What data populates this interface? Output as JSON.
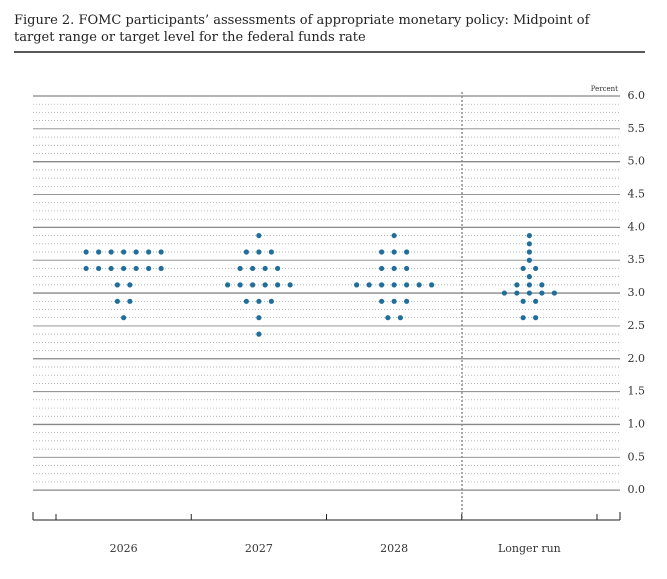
{
  "chart_data": {
    "type": "dot",
    "title": "Figure 2. FOMC participants’ assessments of appropriate monetary policy: Midpoint of target range or target level for the federal funds rate",
    "y_axis_label": "Percent",
    "categories": [
      "2026",
      "2027",
      "2028",
      "Longer run"
    ],
    "values": [
      [
        3.625,
        3.625,
        3.625,
        3.625,
        3.625,
        3.625,
        3.625,
        3.375,
        3.375,
        3.375,
        3.375,
        3.375,
        3.375,
        3.375,
        3.125,
        3.125,
        2.875,
        2.875,
        2.625
      ],
      [
        3.875,
        3.625,
        3.625,
        3.625,
        3.375,
        3.375,
        3.375,
        3.375,
        3.125,
        3.125,
        3.125,
        3.125,
        3.125,
        3.125,
        2.875,
        2.875,
        2.875,
        2.625,
        2.375
      ],
      [
        3.875,
        3.625,
        3.625,
        3.625,
        3.375,
        3.375,
        3.375,
        3.125,
        3.125,
        3.125,
        3.125,
        3.125,
        3.125,
        3.125,
        2.875,
        2.875,
        2.875,
        2.625,
        2.625
      ],
      [
        3.875,
        3.75,
        3.625,
        3.5,
        3.375,
        3.375,
        3.25,
        3.125,
        3.125,
        3.125,
        3.0,
        3.0,
        3.0,
        3.0,
        3.0,
        2.875,
        2.875,
        2.625,
        2.625
      ]
    ],
    "color": "#1f6e9c",
    "ylim": [
      -0.5,
      6.0
    ],
    "yticks": [
      {
        "value": 0,
        "label": "0.0"
      },
      0.5,
      {
        "value": 1,
        "label": "1.0"
      },
      1.5,
      {
        "value": 2,
        "label": "2.0"
      },
      2.5,
      {
        "value": 3,
        "label": "3.0"
      },
      3.5,
      {
        "value": 4,
        "label": "4.0"
      },
      4.5,
      {
        "value": 5,
        "label": "5.0"
      },
      5.5,
      {
        "value": 6,
        "label": "6.0"
      }
    ],
    "grid": true
  }
}
